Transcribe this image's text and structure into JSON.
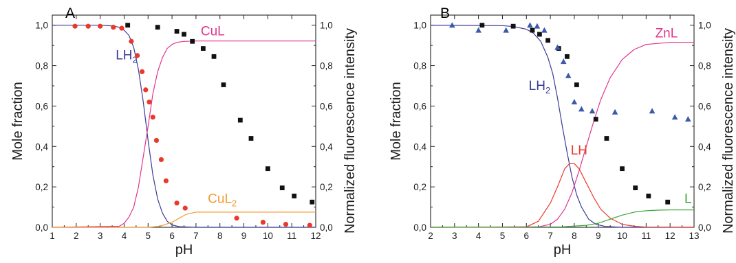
{
  "chart_data": [
    {
      "type": "line",
      "panel_label": "A",
      "xlabel": "pH",
      "ylabel": "Mole fraction",
      "y2label": "Normalized fluorescence intensity",
      "xlim": [
        1,
        12
      ],
      "ylim": [
        0,
        1.05
      ],
      "y2lim": [
        0,
        1.05
      ],
      "xticks": [
        "1",
        "2",
        "3",
        "4",
        "5",
        "6",
        "7",
        "8",
        "9",
        "10",
        "11",
        "12"
      ],
      "yticks": [
        "0,0",
        "0,2",
        "0,4",
        "0,6",
        "0,8",
        "1,0"
      ],
      "y2ticks": [
        "0,0",
        "0,2",
        "0,4",
        "0,6",
        "0,8",
        "1,0"
      ],
      "curve_colors": {
        "LH2": "#3b3b98",
        "CuL": "#e0358f",
        "CuL2": "#f39a32"
      },
      "curves": [
        {
          "label": "LH₂",
          "color": "#3b3b98",
          "label_pos": [
            4.1,
            0.83
          ],
          "x": [
            1,
            3,
            3.5,
            3.8,
            4,
            4.2,
            4.4,
            4.6,
            4.8,
            5.0,
            5.2,
            5.4,
            5.6,
            5.8,
            6.0,
            6.3,
            7,
            12
          ],
          "y": [
            1,
            1,
            0.997,
            0.99,
            0.975,
            0.95,
            0.89,
            0.78,
            0.62,
            0.43,
            0.26,
            0.14,
            0.07,
            0.03,
            0.012,
            0.003,
            0,
            0
          ]
        },
        {
          "label": "CuL",
          "color": "#e0358f",
          "label_pos": [
            7.7,
            0.95
          ],
          "x": [
            1,
            3.8,
            4,
            4.2,
            4.4,
            4.6,
            4.8,
            5.0,
            5.2,
            5.4,
            5.6,
            5.8,
            6.0,
            6.2,
            6.5,
            7,
            12
          ],
          "y": [
            0,
            0.005,
            0.02,
            0.05,
            0.1,
            0.2,
            0.35,
            0.5,
            0.66,
            0.77,
            0.84,
            0.885,
            0.905,
            0.915,
            0.92,
            0.922,
            0.922
          ]
        },
        {
          "label": "CuL₂",
          "color": "#f39a32",
          "label_pos": [
            8.1,
            0.12
          ],
          "x": [
            1,
            5.0,
            5.5,
            6.0,
            6.3,
            6.6,
            7.0,
            12
          ],
          "y": [
            0,
            0,
            0.005,
            0.025,
            0.045,
            0.065,
            0.075,
            0.075
          ]
        }
      ],
      "markers": [
        {
          "shape": "square",
          "color": "#111111",
          "x": [
            4.15,
            5.4,
            6.2,
            6.5,
            6.85,
            7.3,
            7.75,
            8.15,
            8.85,
            9.3,
            10.0,
            10.6,
            11.1,
            11.85
          ],
          "y": [
            1.0,
            0.99,
            0.97,
            0.955,
            0.92,
            0.885,
            0.845,
            0.705,
            0.53,
            0.44,
            0.29,
            0.195,
            0.155,
            0.125
          ]
        },
        {
          "shape": "circle",
          "color": "#e8392a",
          "x": [
            1.95,
            2.5,
            3.0,
            3.55,
            3.9,
            4.3,
            4.55,
            4.75,
            4.9,
            5.05,
            5.2,
            5.35,
            5.55,
            5.75,
            6.2,
            6.55,
            8.7,
            9.8,
            10.75,
            11.75
          ],
          "y": [
            0.995,
            0.995,
            0.995,
            0.99,
            0.985,
            0.92,
            0.85,
            0.77,
            0.68,
            0.62,
            0.545,
            0.43,
            0.335,
            0.23,
            0.12,
            0.095,
            0.045,
            0.025,
            0.015,
            0.01
          ]
        }
      ]
    },
    {
      "type": "line",
      "panel_label": "B",
      "xlabel": "pH",
      "ylabel": "Mole fraction",
      "y2label": "Normalized fluorescence intensity",
      "xlim": [
        2,
        13
      ],
      "ylim": [
        0,
        1.05
      ],
      "y2lim": [
        0,
        1.05
      ],
      "xticks": [
        "2",
        "3",
        "4",
        "5",
        "6",
        "7",
        "8",
        "9",
        "10",
        "11",
        "12",
        "13"
      ],
      "yticks": [
        "0,0",
        "0,2",
        "0,4",
        "0,6",
        "0,8",
        "1,0"
      ],
      "y2ticks": [
        "0,0",
        "0,2",
        "0,4",
        "0,6",
        "0,8",
        "1,0"
      ],
      "curve_colors": {
        "LH2": "#3b3b98",
        "ZnL": "#e0358f",
        "LH": "#e8392a",
        "L": "#3aa63a"
      },
      "curves": [
        {
          "label": "LH₂",
          "color": "#3b3b98",
          "label_pos": [
            6.55,
            0.68
          ],
          "x": [
            2,
            5,
            5.5,
            6,
            6.3,
            6.6,
            6.9,
            7.1,
            7.3,
            7.5,
            7.7,
            7.9,
            8.1,
            8.3,
            8.6,
            8.9,
            9.3,
            10,
            13
          ],
          "y": [
            1,
            0.998,
            0.993,
            0.98,
            0.96,
            0.92,
            0.84,
            0.76,
            0.64,
            0.5,
            0.37,
            0.25,
            0.16,
            0.1,
            0.04,
            0.015,
            0.004,
            0,
            0
          ]
        },
        {
          "label": "ZnL",
          "color": "#e0358f",
          "label_pos": [
            11.85,
            0.94
          ],
          "x": [
            2,
            6.5,
            7,
            7.3,
            7.6,
            7.9,
            8.2,
            8.5,
            8.8,
            9.1,
            9.5,
            10,
            10.5,
            11,
            12,
            13
          ],
          "y": [
            0,
            0.002,
            0.015,
            0.04,
            0.09,
            0.17,
            0.28,
            0.4,
            0.52,
            0.63,
            0.74,
            0.83,
            0.88,
            0.905,
            0.915,
            0.915
          ]
        },
        {
          "label": "LH",
          "color": "#e8392a",
          "label_pos": [
            8.2,
            0.36
          ],
          "x": [
            2,
            6,
            6.5,
            7,
            7.3,
            7.6,
            7.8,
            8.0,
            8.2,
            8.5,
            8.8,
            9.1,
            9.5,
            10,
            10.5,
            11,
            13
          ],
          "y": [
            0,
            0.002,
            0.03,
            0.12,
            0.2,
            0.29,
            0.315,
            0.315,
            0.29,
            0.22,
            0.15,
            0.09,
            0.045,
            0.015,
            0.005,
            0.001,
            0
          ]
        },
        {
          "label": "L",
          "color": "#3aa63a",
          "label_pos": [
            12.75,
            0.12
          ],
          "x": [
            2,
            7.5,
            8.5,
            9,
            9.5,
            10,
            10.5,
            11,
            11.5,
            12,
            13
          ],
          "y": [
            0,
            0.002,
            0.01,
            0.02,
            0.04,
            0.06,
            0.075,
            0.082,
            0.085,
            0.086,
            0.086
          ]
        }
      ],
      "markers": [
        {
          "shape": "square",
          "color": "#111111",
          "x": [
            4.15,
            5.45,
            6.25,
            6.55,
            6.9,
            7.35,
            7.7,
            8.1,
            8.9,
            9.35,
            10.0,
            10.55,
            11.1,
            11.9
          ],
          "y": [
            1.0,
            0.995,
            0.975,
            0.955,
            0.925,
            0.885,
            0.845,
            0.705,
            0.535,
            0.44,
            0.29,
            0.195,
            0.155,
            0.125
          ]
        },
        {
          "shape": "triangle",
          "color": "#3b5aa8",
          "x": [
            2.9,
            4.0,
            5.15,
            6.15,
            6.45,
            6.75,
            7.3,
            7.55,
            7.75,
            8.0,
            8.3,
            8.75,
            9.7,
            11.25,
            12.2,
            12.75
          ],
          "y": [
            1.0,
            0.975,
            0.975,
            1.0,
            0.995,
            0.975,
            0.89,
            0.82,
            0.75,
            0.62,
            0.585,
            0.575,
            0.57,
            0.575,
            0.545,
            0.535
          ]
        }
      ]
    }
  ]
}
